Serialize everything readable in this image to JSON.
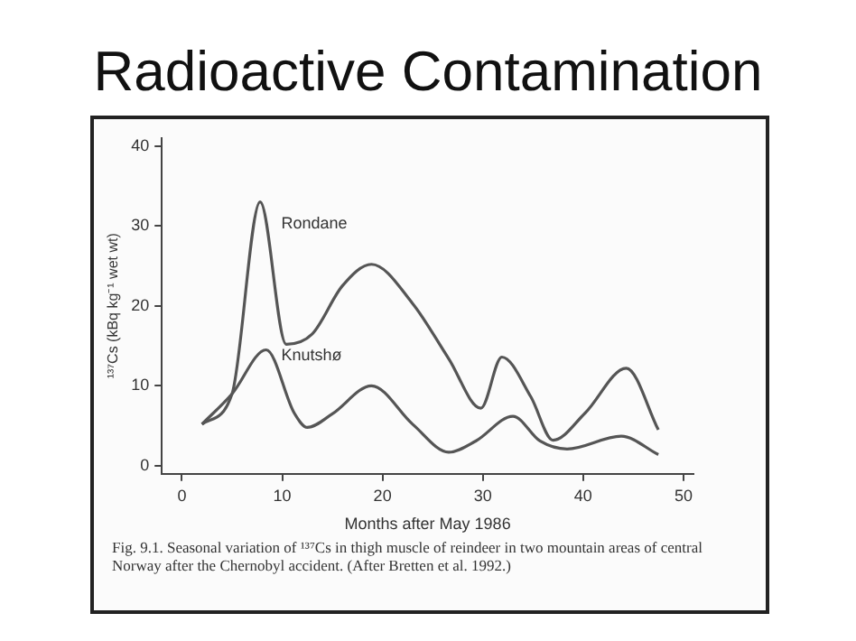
{
  "chart_data": {
    "type": "line",
    "title": "Radioactive Contamination",
    "xlabel": "Months after May 1986",
    "ylabel": "¹³⁷Cs (kBq kg⁻¹ wet wt)",
    "xlim": [
      -2,
      51
    ],
    "xticks": [
      0,
      10,
      20,
      30,
      40,
      50
    ],
    "ylim": [
      -1,
      41
    ],
    "yticks": [
      0,
      10,
      20,
      30,
      40
    ],
    "grid": false,
    "legend": false,
    "marker": "none",
    "series": [
      {
        "name": "Rondane",
        "color": "#555555",
        "x": [
          2,
          5,
          7.8,
          10.4,
          13,
          16,
          18.9,
          23,
          26.6,
          29.8,
          31.9,
          34.8,
          37,
          40.2,
          44.3,
          47.5
        ],
        "values": [
          5.2,
          9,
          33,
          15.2,
          16.5,
          22.5,
          25.2,
          20.3,
          13.4,
          7.2,
          13.6,
          8.6,
          3.2,
          6.6,
          12.2,
          4.5
        ]
      },
      {
        "name": "Knutshø",
        "color": "#555555",
        "x": [
          2,
          5,
          8.4,
          11.2,
          12.5,
          15,
          18.9,
          23,
          26.6,
          29.3,
          33,
          35.7,
          38.4,
          43.8,
          47.5
        ],
        "values": [
          5.2,
          9,
          14.5,
          6.6,
          4.8,
          6.5,
          10,
          5.2,
          1.7,
          3.1,
          6.2,
          3.1,
          2.1,
          3.7,
          1.4
        ]
      }
    ],
    "annotations": [
      "Fig. 9.1. Seasonal variation of ¹³⁷Cs in thigh muscle of reindeer in two mountain areas of central Norway after the Chernobyl accident. (After Bretten et al. 1992.)"
    ]
  }
}
